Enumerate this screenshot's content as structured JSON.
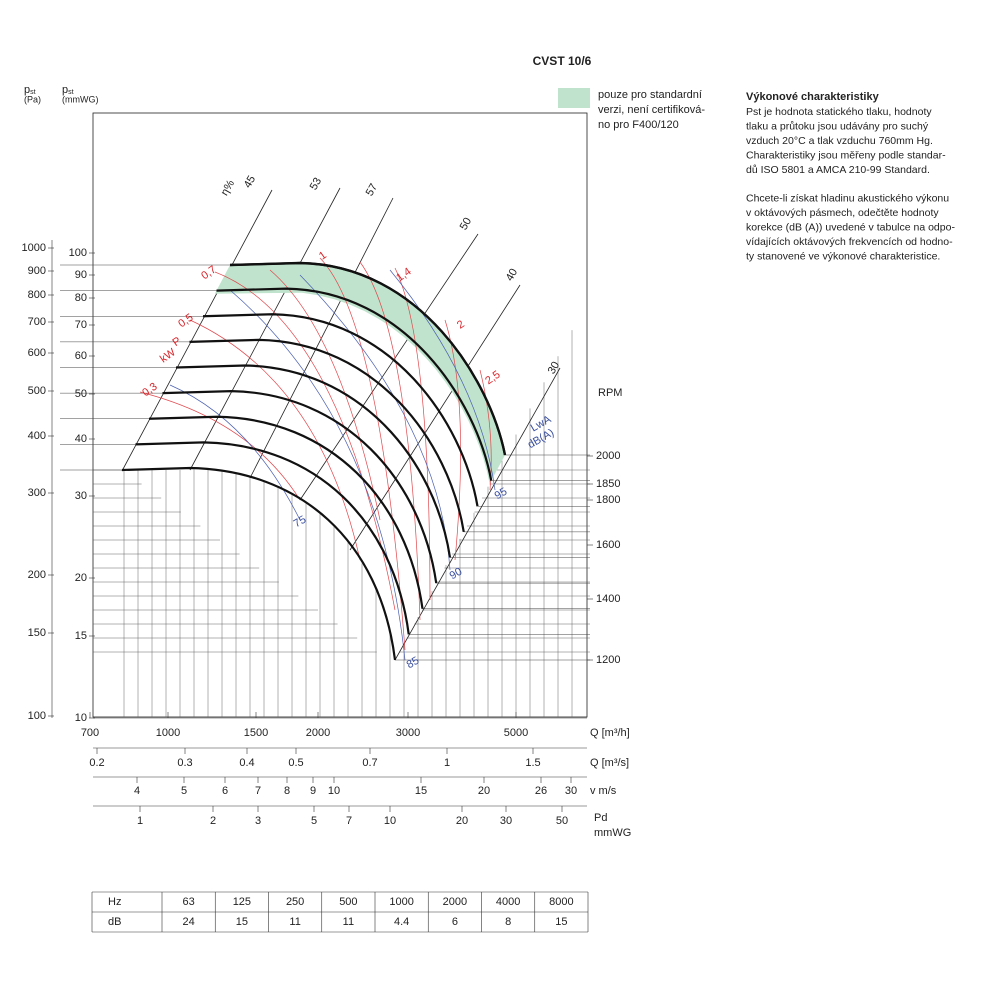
{
  "title": "CVST 10/6",
  "axes": {
    "pa": {
      "symbol": "p",
      "subscript": "st",
      "unit": "(Pa)",
      "ticks": [
        1000,
        900,
        800,
        700,
        600,
        500,
        400,
        300,
        200,
        150,
        100
      ]
    },
    "mmwg": {
      "symbol": "p",
      "subscript": "st",
      "unit": "(mmWG)",
      "ticks": [
        100,
        90,
        80,
        70,
        60,
        50,
        40,
        30,
        20,
        15,
        10
      ]
    },
    "q_m3h": {
      "label": "Q [m³/h]",
      "ticks": [
        700,
        1000,
        1500,
        2000,
        3000,
        5000
      ]
    },
    "q_m3s": {
      "label": "Q [m³/s]",
      "ticks": [
        0.2,
        0.3,
        0.4,
        0.5,
        0.7,
        1,
        1.5
      ]
    },
    "v": {
      "label": "v m/s",
      "ticks": [
        4,
        5,
        6,
        7,
        8,
        9,
        10,
        15,
        20,
        26,
        30
      ]
    },
    "pd": {
      "label": "Pd",
      "unit": "mmWG",
      "ticks": [
        1,
        2,
        3,
        5,
        7,
        10,
        20,
        30,
        50
      ]
    }
  },
  "rpm": {
    "label": "RPM",
    "ticks": [
      2000,
      1850,
      1800,
      1600,
      1400,
      1200
    ]
  },
  "efficiency": {
    "label": "η%",
    "values": [
      45,
      53,
      57,
      50,
      40,
      30
    ]
  },
  "power": {
    "symbol": "P",
    "unit": "kW",
    "values": [
      "0,3",
      "0,5",
      "0,7",
      "1",
      "1,4",
      "2",
      "2,5"
    ]
  },
  "lwa": {
    "label": "LwA",
    "unit": "dB(A)",
    "values": [
      75,
      85,
      90,
      95
    ]
  },
  "legend": {
    "lines": [
      "pouze pro standardní",
      "verzi, není certifiková-",
      "no pro F400/120"
    ]
  },
  "description": {
    "heading": "Výkonové charakteristiky",
    "paragraphs": [
      [
        "Pst je hodnota statického tlaku, hodnoty",
        "tlaku a průtoku jsou udávány pro suchý",
        "vzduch 20°C a tlak vzduchu 760mm Hg.",
        "Charakteristiky jsou měřeny podle standar-",
        "dů ISO 5801 a AMCA 210-99 Standard."
      ],
      [
        "Chcete-li získat hladinu akustického výkonu",
        "v oktávových pásmech, odečtěte hodnoty",
        "korekce (dB (A)) uvedené v tabulce na odpo-",
        "vídajících oktávových frekvencích od hodno-",
        "ty stanovené ve výkonové charakteristice."
      ]
    ]
  },
  "table": {
    "rows": [
      [
        "Hz",
        63,
        125,
        250,
        500,
        1000,
        2000,
        4000,
        8000
      ],
      [
        "dB",
        24,
        15,
        11,
        11,
        4.4,
        6,
        8,
        15
      ]
    ]
  }
}
